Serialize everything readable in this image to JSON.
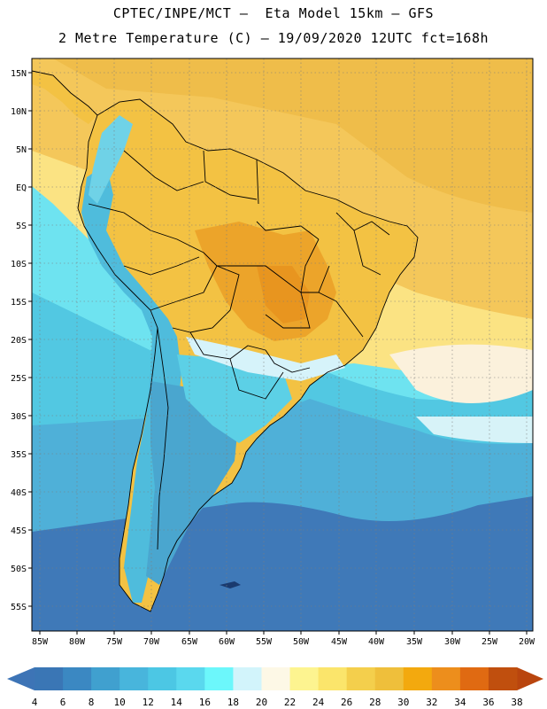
{
  "header": {
    "title_line1": "CPTEC/INPE/MCT –  Eta Model 15km – GFS",
    "title_line2": "2 Metre Temperature (C) – 19/09/2020 12UTC fct=168h"
  },
  "map": {
    "lat_labels": [
      "15N",
      "10N",
      "5N",
      "EQ",
      "5S",
      "10S",
      "15S",
      "20S",
      "25S",
      "30S",
      "35S",
      "40S",
      "45S",
      "50S",
      "55S"
    ],
    "lon_labels": [
      "85W",
      "80W",
      "75W",
      "70W",
      "65W",
      "60W",
      "55W",
      "50W",
      "45W",
      "40W",
      "35W",
      "30W",
      "25W",
      "20W"
    ],
    "colors": {
      "ocean_cold": "#3f79b8",
      "ocean_mid": "#52c3df",
      "land_warm": "#f4c440",
      "land_hot": "#eea12a",
      "border": "#000000",
      "grid": "#888888"
    }
  },
  "colorbar": {
    "labels": [
      "4",
      "6",
      "8",
      "10",
      "12",
      "14",
      "16",
      "18",
      "20",
      "22",
      "24",
      "26",
      "28",
      "30",
      "32",
      "34",
      "36",
      "38"
    ],
    "colors": [
      "#3a76b5",
      "#3b88c2",
      "#40a0cf",
      "#48b5dc",
      "#4cc7e4",
      "#5ad8ee",
      "#6cf7fb",
      "#d2f4fb",
      "#fdf8e6",
      "#fdf490",
      "#fbe56b",
      "#f4cf4c",
      "#efbf3b",
      "#f3a90e",
      "#ed8e1c",
      "#e06a12",
      "#c04f0e"
    ],
    "left_arrow_color": "#3d74b6",
    "right_arrow_color": "#b9450e"
  }
}
